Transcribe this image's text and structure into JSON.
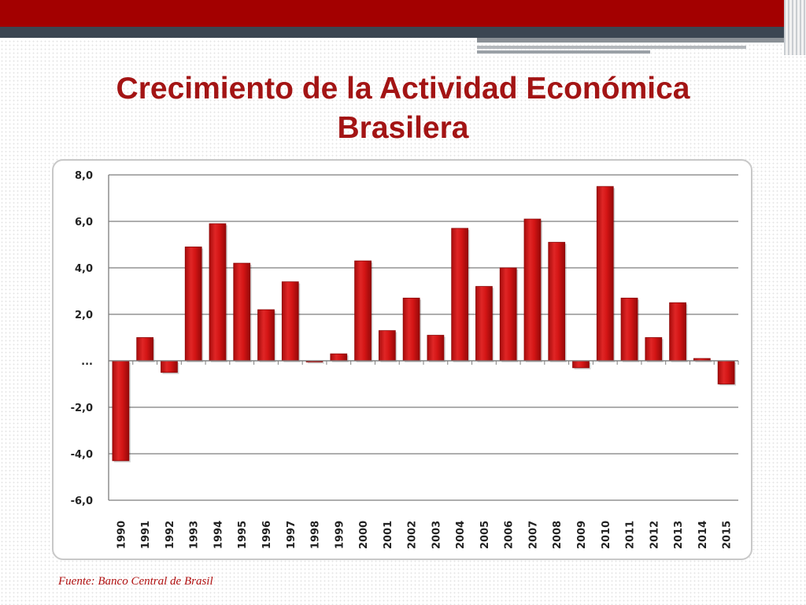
{
  "slide": {
    "title_line1": "Crecimiento de la Actividad Económica",
    "title_line2": "Brasilera",
    "source": "Fuente: Banco Central de Brasil"
  },
  "colors": {
    "bar": "#cc1111",
    "title": "#a31414",
    "header_red": "#a30000",
    "header_dark": "#3b4652"
  },
  "chart_data": {
    "type": "bar",
    "title": "",
    "xlabel": "",
    "ylabel": "",
    "ylim": [
      -6,
      8
    ],
    "grid": true,
    "y_ticks": [
      {
        "value": 8,
        "label": "8,0"
      },
      {
        "value": 6,
        "label": "6,0"
      },
      {
        "value": 4,
        "label": "4,0"
      },
      {
        "value": 2,
        "label": "2,0"
      },
      {
        "value": 0,
        "label": "..."
      },
      {
        "value": -2,
        "label": "-2,0"
      },
      {
        "value": -4,
        "label": "-4,0"
      },
      {
        "value": -6,
        "label": "-6,0"
      }
    ],
    "categories": [
      "1990",
      "1991",
      "1992",
      "1993",
      "1994",
      "1995",
      "1996",
      "1997",
      "1998",
      "1999",
      "2000",
      "2001",
      "2002",
      "2003",
      "2004",
      "2005",
      "2006",
      "2007",
      "2008",
      "2009",
      "2010",
      "2011",
      "2012",
      "2013",
      "2014",
      "2015"
    ],
    "values": [
      -4.3,
      1.0,
      -0.5,
      4.9,
      5.9,
      4.2,
      2.2,
      3.4,
      0.0,
      0.3,
      4.3,
      1.3,
      2.7,
      1.1,
      5.7,
      3.2,
      4.0,
      6.1,
      5.1,
      -0.3,
      7.5,
      2.7,
      1.0,
      2.5,
      0.1,
      -1.0
    ]
  }
}
